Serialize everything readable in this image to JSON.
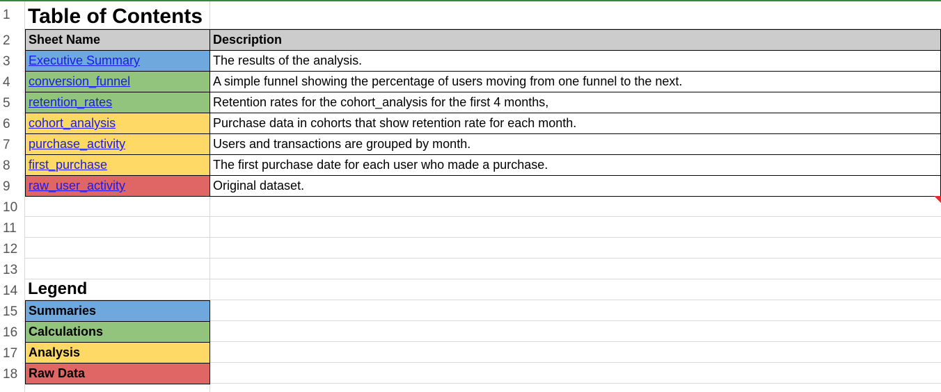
{
  "sheet": {
    "title": "Table of Contents",
    "headers": {
      "sheet_name": "Sheet Name",
      "description": "Description"
    },
    "rows": [
      {
        "name": "Executive Summary",
        "description": "The results of the analysis.",
        "color": "#6fa8dc"
      },
      {
        "name": "conversion_funnel",
        "description": "A simple funnel showing the percentage of users moving from one funnel to the next.",
        "color": "#93c47d"
      },
      {
        "name": "retention_rates",
        "description": "Retention rates for the cohort_analysis for the first 4 months,",
        "color": "#93c47d"
      },
      {
        "name": "cohort_analysis",
        "description": "Purchase data in cohorts that show retention rate for each month.",
        "color": "#ffd966"
      },
      {
        "name": "purchase_activity",
        "description": "Users and transactions are grouped by month.",
        "color": "#ffd966"
      },
      {
        "name": "first_purchase",
        "description": "The first purchase date for each user who made a purchase.",
        "color": "#ffd966"
      },
      {
        "name": "raw_user_activity",
        "description": "Original dataset.",
        "color": "#e06666"
      }
    ],
    "legend": {
      "title": "Legend",
      "items": [
        {
          "label": "Summaries",
          "color": "#6fa8dc"
        },
        {
          "label": "Calculations",
          "color": "#93c47d"
        },
        {
          "label": "Analysis",
          "color": "#ffd966"
        },
        {
          "label": "Raw Data",
          "color": "#e06666"
        }
      ]
    },
    "row_numbers": [
      "1",
      "2",
      "3",
      "4",
      "5",
      "6",
      "7",
      "8",
      "9",
      "10",
      "11",
      "12",
      "13",
      "14",
      "15",
      "16",
      "17",
      "18"
    ]
  }
}
